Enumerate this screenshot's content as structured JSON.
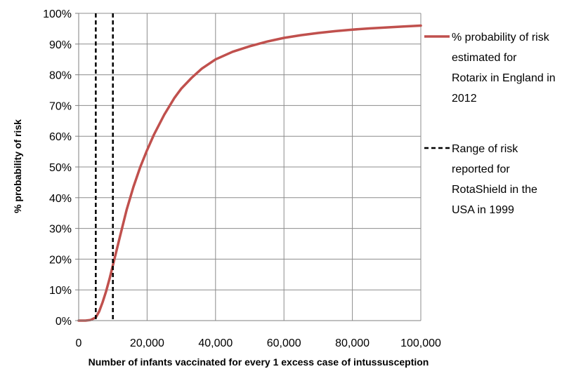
{
  "chart_data": {
    "type": "line",
    "title": "",
    "xlabel": "Number of infants vaccinated for every 1 excess case of intussusception",
    "ylabel": "% probability of risk",
    "xlim": [
      0,
      100000
    ],
    "ylim": [
      0,
      100
    ],
    "x_ticks": [
      0,
      20000,
      40000,
      60000,
      80000,
      100000
    ],
    "x_tick_labels": [
      "0",
      "20,000",
      "40,000",
      "60,000",
      "80,000",
      "100,000"
    ],
    "y_ticks": [
      0,
      10,
      20,
      30,
      40,
      50,
      60,
      70,
      80,
      90,
      100
    ],
    "y_tick_labels": [
      "0%",
      "10%",
      "20%",
      "30%",
      "40%",
      "50%",
      "60%",
      "70%",
      "80%",
      "90%",
      "100%"
    ],
    "grid": true,
    "legend_position": "right",
    "series": [
      {
        "name": "% probability of risk estimated for Rotarix in England in 2012",
        "legend_lines": [
          "% probability of risk",
          "estimated for",
          "Rotarix in England in",
          "2012"
        ],
        "style": "solid",
        "color": "#C0504D",
        "x": [
          0,
          2000,
          3500,
          5000,
          6000,
          7000,
          8000,
          9000,
          10000,
          12000,
          14000,
          16000,
          18000,
          20000,
          22000,
          25000,
          28000,
          30000,
          33000,
          36000,
          40000,
          45000,
          50000,
          55000,
          60000,
          65000,
          70000,
          75000,
          80000,
          85000,
          90000,
          95000,
          100000
        ],
        "y": [
          0,
          0,
          0.2,
          1,
          3,
          6,
          9.5,
          13.5,
          18,
          27,
          36,
          43.5,
          50,
          55.5,
          60.5,
          67,
          72.5,
          75.5,
          79,
          82,
          85,
          87.5,
          89.3,
          90.8,
          92,
          92.9,
          93.6,
          94.2,
          94.7,
          95.1,
          95.4,
          95.7,
          96
        ]
      },
      {
        "name": "Range of risk reported for RotaShield in the USA in 1999",
        "legend_lines": [
          "Range of risk",
          "reported for",
          "RotaShield in the",
          "USA in 1999"
        ],
        "style": "dashed",
        "color": "#000000",
        "vlines": [
          5000,
          10000
        ]
      }
    ]
  }
}
